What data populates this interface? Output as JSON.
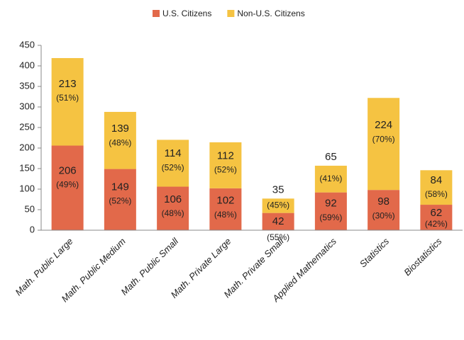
{
  "chart_data": {
    "type": "stacked_bar",
    "categories": [
      "Math. Public Large",
      "Math. Public Medium",
      "Math. Public Small",
      "Math. Private Large",
      "Math. Private Small",
      "Applied Mathematics",
      "Statistics",
      "Biostatistics"
    ],
    "series": [
      {
        "name": "U.S. Citizens",
        "color": "#e2694a",
        "values": [
          206,
          149,
          106,
          102,
          42,
          92,
          98,
          62
        ],
        "percent_labels": [
          "(49%)",
          "(52%)",
          "(48%)",
          "(48%)",
          "(55%)",
          "(59%)",
          "(30%)",
          "(42%)"
        ]
      },
      {
        "name": "Non-U.S. Citizens",
        "color": "#f5c342",
        "values": [
          213,
          139,
          114,
          112,
          35,
          65,
          224,
          84
        ],
        "percent_labels": [
          "(51%)",
          "(48%)",
          "(52%)",
          "(52%)",
          "(45%)",
          "(41%)",
          "(70%)",
          "(58%)"
        ]
      }
    ],
    "ylim": [
      0,
      450
    ],
    "yticks": [
      0,
      50,
      100,
      150,
      200,
      250,
      300,
      350,
      400,
      450
    ],
    "legend": "top"
  }
}
